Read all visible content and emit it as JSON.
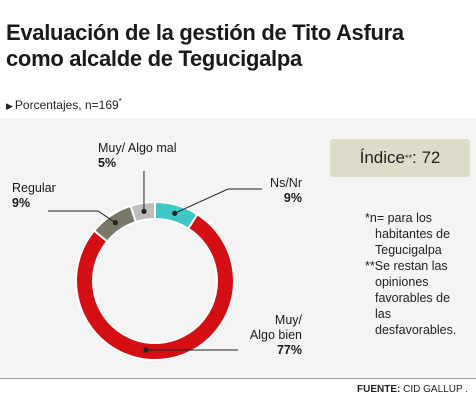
{
  "header": {
    "title_line1": "Evaluación de la gestión de  Tito Asfura",
    "title_line2": "como alcalde de Tegucigalpa",
    "subtitle": "Porcentajes, n=169",
    "subtitle_mark": "*"
  },
  "index_box": {
    "label": "Índice",
    "mark": "**",
    "value_text": ": 72"
  },
  "notes": {
    "note1_line1": "*n= para los",
    "note1_line2": "habitantes de",
    "note1_line3": "Tegucigalpa",
    "note2_line1": "**Se restan las",
    "note2_line2": "opiniones",
    "note2_line3": "favorables de",
    "note2_line4": "las",
    "note2_line5": "desfavorables."
  },
  "source": {
    "label": "FUENTE:",
    "value": "CID GALLUP ."
  },
  "chart_data": {
    "type": "pie",
    "style": "donut",
    "unit": "%",
    "slices": [
      {
        "name": "Ns/Nr",
        "value": 9,
        "label": "9%",
        "color": "#3ec7c4"
      },
      {
        "name": "Muy/ Algo bien",
        "value": 77,
        "label": "77%",
        "color": "#d40f14"
      },
      {
        "name": "Regular",
        "value": 9,
        "label": "9%",
        "color": "#7a7868"
      },
      {
        "name": "Muy/ Algo mal",
        "value": 5,
        "label": "5%",
        "color": "#bdbdbd"
      }
    ],
    "labels": {
      "bien_line1": "Muy/",
      "bien_line2": "Algo bien"
    }
  }
}
